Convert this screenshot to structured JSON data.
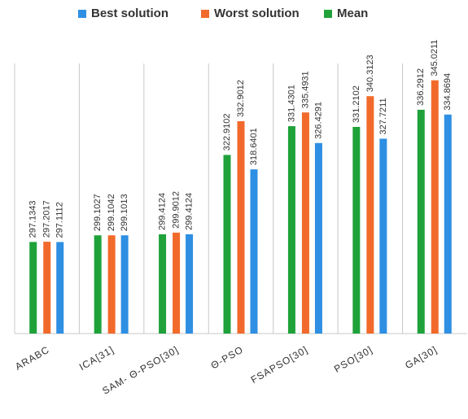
{
  "chart_data": {
    "type": "bar",
    "categories": [
      "ARABC",
      "ICA[31]",
      "SAM- Θ-PSO[30]",
      "Θ-PSO",
      "FSAPSO[30]",
      "PSO[30]",
      "GA[30]"
    ],
    "series": [
      {
        "name": "Mean",
        "color": "#1fa23a",
        "values": [
          297.1343,
          299.1027,
          299.4124,
          322.9102,
          331.4301,
          331.2102,
          336.2912
        ]
      },
      {
        "name": "Worst solution",
        "color": "#f26a2b",
        "values": [
          297.2017,
          299.1042,
          299.9012,
          332.9012,
          335.4931,
          340.3123,
          345.0211
        ]
      },
      {
        "name": "Best solution",
        "color": "#2e8fe3",
        "values": [
          297.1112,
          299.1013,
          299.4124,
          318.6401,
          326.4291,
          327.7211,
          334.8694
        ]
      }
    ],
    "ylim": [
      270,
      350
    ]
  }
}
